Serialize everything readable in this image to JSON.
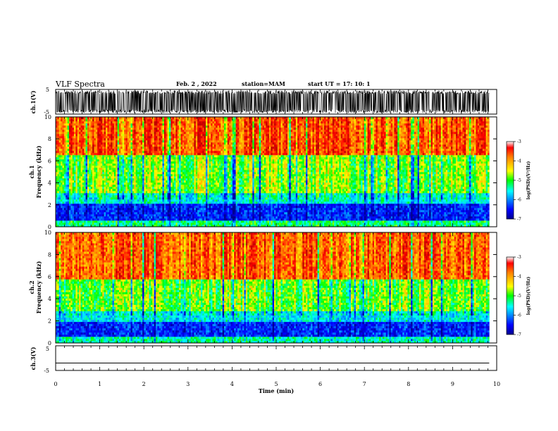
{
  "header": {
    "title": "VLF Spectra",
    "date": "Feb. 2  , 2022",
    "station": "station=MAM",
    "start_time": "start  UT  =   17: 10: 1"
  },
  "panels": {
    "ch1_wave": {
      "label": "ch.1(V)",
      "ticks": [
        "5",
        "-5"
      ]
    },
    "ch1_spec": {
      "label_line1": "ch.1",
      "label_line2": "Frequency (kHz)"
    },
    "ch2_spec": {
      "label_line1": "ch.2",
      "label_line2": "Frequency (kHz)"
    },
    "ch3_wave": {
      "label": "ch.3(V)",
      "ticks": [
        "5",
        "-5"
      ]
    }
  },
  "colorbars": [
    {
      "label": "log(PSD)(V²/Hz)",
      "ticks": [
        "-3",
        "-4",
        "-5",
        "-6",
        "-7"
      ]
    },
    {
      "label": "log(PSD)(V²/Hz)",
      "ticks": [
        "-3",
        "-4",
        "-5",
        "-6",
        "-7"
      ]
    }
  ],
  "chart_data": [
    {
      "type": "line",
      "name": "ch.1 waveform",
      "ylabel": "ch.1(V)",
      "ylim": [
        -5,
        5
      ],
      "xlim": [
        0,
        10
      ],
      "data_end_min": 9.83,
      "description_values": "dense oscillation saturating between about -4.5 and 4.5 V"
    },
    {
      "type": "heatmap",
      "name": "ch.1 spectrogram",
      "ylabel": "Frequency (kHz)",
      "ylim": [
        0,
        10
      ],
      "yticks": [
        "0",
        "2",
        "4",
        "6",
        "8",
        "10"
      ],
      "xlim": [
        0,
        10
      ],
      "color_scale": {
        "min": -7,
        "max": -3,
        "label": "log(PSD)(V²/Hz)"
      },
      "bands": [
        {
          "f_low": 0,
          "f_high": 0.6,
          "psd": -5.2
        },
        {
          "f_low": 0.6,
          "f_high": 2.2,
          "psd": -6.4
        },
        {
          "f_low": 2.2,
          "f_high": 3.0,
          "psd": -5.5
        },
        {
          "f_low": 3.0,
          "f_high": 6.5,
          "psd": -4.8
        },
        {
          "f_low": 6.5,
          "f_high": 10,
          "psd": -3.6
        }
      ]
    },
    {
      "type": "heatmap",
      "name": "ch.2 spectrogram",
      "ylabel": "Frequency (kHz)",
      "ylim": [
        0,
        10
      ],
      "yticks": [
        "0",
        "2",
        "4",
        "6",
        "8",
        "10"
      ],
      "xlim": [
        0,
        10
      ],
      "color_scale": {
        "min": -7,
        "max": -3,
        "label": "log(PSD)(V²/Hz)"
      },
      "bands": [
        {
          "f_low": 0,
          "f_high": 0.5,
          "psd": -5.4
        },
        {
          "f_low": 0.5,
          "f_high": 2.0,
          "psd": -6.4
        },
        {
          "f_low": 2.0,
          "f_high": 2.8,
          "psd": -5.6
        },
        {
          "f_low": 2.8,
          "f_high": 5.8,
          "psd": -4.9
        },
        {
          "f_low": 5.8,
          "f_high": 10,
          "psd": -3.7
        }
      ]
    },
    {
      "type": "line",
      "name": "ch.3 waveform",
      "ylabel": "ch.3(V)",
      "ylim": [
        -5,
        5
      ],
      "xlim": [
        0,
        10
      ],
      "data_end_min": 9.83,
      "y": [
        -2,
        -2
      ]
    }
  ],
  "xaxis": {
    "label": "Time  (min)",
    "ticks": [
      "0",
      "1",
      "2",
      "3",
      "4",
      "5",
      "6",
      "7",
      "8",
      "9",
      "10"
    ]
  },
  "colors": {
    "jet": [
      "#00008f",
      "#0000ff",
      "#00ffff",
      "#00ff00",
      "#ffff00",
      "#ff7f00",
      "#ff0000",
      "#bf0000"
    ]
  }
}
